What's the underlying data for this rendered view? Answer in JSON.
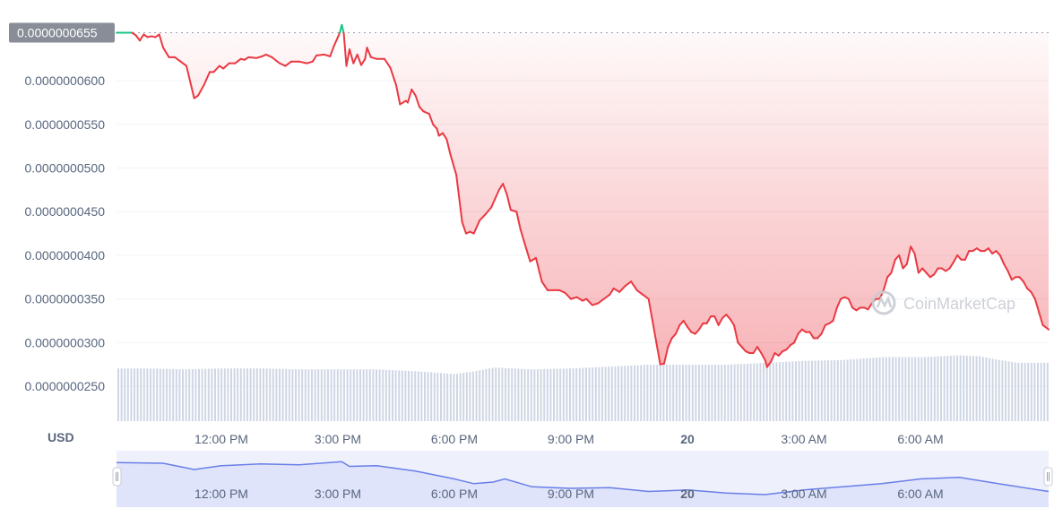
{
  "chart_data": {
    "type": "line",
    "currency_label": "USD",
    "current_price_label": "0.0000000655",
    "y_ticks": [
      "0.0000000600",
      "0.0000000550",
      "0.0000000500",
      "0.0000000450",
      "0.0000000400",
      "0.0000000350",
      "0.0000000300",
      "0.0000000250"
    ],
    "y_tick_values": [
      6e-08,
      5.5e-08,
      5e-08,
      4.5e-08,
      4e-08,
      3.5e-08,
      3e-08,
      2.5e-08
    ],
    "x_ticks": [
      {
        "label": "12:00 PM",
        "hour": 12,
        "bold": false
      },
      {
        "label": "3:00 PM",
        "hour": 15,
        "bold": false
      },
      {
        "label": "6:00 PM",
        "hour": 18,
        "bold": false
      },
      {
        "label": "9:00 PM",
        "hour": 21,
        "bold": false
      },
      {
        "label": "20",
        "hour": 24,
        "bold": true
      },
      {
        "label": "3:00 AM",
        "hour": 27,
        "bold": false
      },
      {
        "label": "6:00 AM",
        "hour": 30,
        "bold": false
      }
    ],
    "reference_price": 6.55e-08,
    "ylim": [
      2.1e-08,
      6.72e-08
    ],
    "xlim_hours": [
      9.3,
      33.3
    ],
    "colors": {
      "up": "#16c784",
      "down": "#ea3943",
      "volume": "#cfd6e4",
      "grid": "#eff2f5",
      "nav_fill": "#dfe4fb",
      "nav_line": "#6a7ee8",
      "label_bg": "#888d98"
    },
    "price_series": [
      [
        9.3,
        6.55
      ],
      [
        9.6,
        6.55
      ],
      [
        9.7,
        6.55
      ],
      [
        9.8,
        6.52
      ],
      [
        9.9,
        6.46
      ],
      [
        10.0,
        6.53
      ],
      [
        10.1,
        6.5
      ],
      [
        10.2,
        6.51
      ],
      [
        10.3,
        6.5
      ],
      [
        10.4,
        6.53
      ],
      [
        10.5,
        6.38
      ],
      [
        10.65,
        6.27
      ],
      [
        10.8,
        6.27
      ],
      [
        10.95,
        6.22
      ],
      [
        11.1,
        6.17
      ],
      [
        11.3,
        5.8
      ],
      [
        11.4,
        5.83
      ],
      [
        11.55,
        5.95
      ],
      [
        11.7,
        6.1
      ],
      [
        11.8,
        6.1
      ],
      [
        11.95,
        6.17
      ],
      [
        12.05,
        6.14
      ],
      [
        12.2,
        6.2
      ],
      [
        12.35,
        6.2
      ],
      [
        12.5,
        6.25
      ],
      [
        12.6,
        6.24
      ],
      [
        12.7,
        6.27
      ],
      [
        12.9,
        6.26
      ],
      [
        13.05,
        6.28
      ],
      [
        13.15,
        6.3
      ],
      [
        13.3,
        6.27
      ],
      [
        13.5,
        6.2
      ],
      [
        13.65,
        6.17
      ],
      [
        13.8,
        6.22
      ],
      [
        14.0,
        6.22
      ],
      [
        14.2,
        6.2
      ],
      [
        14.35,
        6.22
      ],
      [
        14.45,
        6.29
      ],
      [
        14.65,
        6.3
      ],
      [
        14.8,
        6.28
      ],
      [
        14.9,
        6.4
      ],
      [
        15.0,
        6.5
      ],
      [
        15.05,
        6.55
      ],
      [
        15.1,
        6.64
      ],
      [
        15.15,
        6.55
      ],
      [
        15.22,
        6.17
      ],
      [
        15.3,
        6.36
      ],
      [
        15.4,
        6.2
      ],
      [
        15.5,
        6.3
      ],
      [
        15.6,
        6.18
      ],
      [
        15.7,
        6.25
      ],
      [
        15.75,
        6.38
      ],
      [
        15.85,
        6.27
      ],
      [
        16.0,
        6.25
      ],
      [
        16.2,
        6.25
      ],
      [
        16.35,
        6.15
      ],
      [
        16.5,
        5.95
      ],
      [
        16.6,
        5.73
      ],
      [
        16.75,
        5.77
      ],
      [
        16.8,
        5.75
      ],
      [
        16.9,
        5.9
      ],
      [
        17.0,
        5.83
      ],
      [
        17.1,
        5.7
      ],
      [
        17.2,
        5.65
      ],
      [
        17.35,
        5.62
      ],
      [
        17.45,
        5.5
      ],
      [
        17.55,
        5.45
      ],
      [
        17.6,
        5.37
      ],
      [
        17.7,
        5.4
      ],
      [
        17.8,
        5.33
      ],
      [
        17.9,
        5.15
      ],
      [
        18.05,
        4.92
      ],
      [
        18.2,
        4.38
      ],
      [
        18.3,
        4.25
      ],
      [
        18.4,
        4.27
      ],
      [
        18.5,
        4.25
      ],
      [
        18.65,
        4.4
      ],
      [
        18.8,
        4.47
      ],
      [
        18.95,
        4.55
      ],
      [
        19.05,
        4.65
      ],
      [
        19.15,
        4.75
      ],
      [
        19.25,
        4.82
      ],
      [
        19.35,
        4.7
      ],
      [
        19.45,
        4.52
      ],
      [
        19.6,
        4.5
      ],
      [
        19.7,
        4.3
      ],
      [
        19.8,
        4.15
      ],
      [
        19.95,
        3.93
      ],
      [
        20.1,
        3.97
      ],
      [
        20.25,
        3.7
      ],
      [
        20.4,
        3.6
      ],
      [
        20.55,
        3.6
      ],
      [
        20.7,
        3.6
      ],
      [
        20.85,
        3.57
      ],
      [
        21.0,
        3.5
      ],
      [
        21.15,
        3.52
      ],
      [
        21.3,
        3.48
      ],
      [
        21.4,
        3.5
      ],
      [
        21.55,
        3.43
      ],
      [
        21.7,
        3.45
      ],
      [
        21.85,
        3.5
      ],
      [
        22.0,
        3.55
      ],
      [
        22.1,
        3.62
      ],
      [
        22.25,
        3.58
      ],
      [
        22.4,
        3.65
      ],
      [
        22.55,
        3.7
      ],
      [
        22.7,
        3.6
      ],
      [
        22.85,
        3.55
      ],
      [
        23.0,
        3.5
      ],
      [
        23.1,
        3.25
      ],
      [
        23.2,
        3.0
      ],
      [
        23.3,
        2.75
      ],
      [
        23.4,
        2.76
      ],
      [
        23.5,
        2.95
      ],
      [
        23.6,
        3.05
      ],
      [
        23.7,
        3.1
      ],
      [
        23.8,
        3.2
      ],
      [
        23.9,
        3.25
      ],
      [
        24.0,
        3.18
      ],
      [
        24.1,
        3.12
      ],
      [
        24.2,
        3.1
      ],
      [
        24.3,
        3.15
      ],
      [
        24.4,
        3.22
      ],
      [
        24.5,
        3.22
      ],
      [
        24.6,
        3.3
      ],
      [
        24.7,
        3.3
      ],
      [
        24.8,
        3.2
      ],
      [
        24.9,
        3.28
      ],
      [
        25.0,
        3.32
      ],
      [
        25.1,
        3.27
      ],
      [
        25.2,
        3.2
      ],
      [
        25.3,
        3.0
      ],
      [
        25.4,
        2.95
      ],
      [
        25.5,
        2.9
      ],
      [
        25.6,
        2.88
      ],
      [
        25.7,
        2.88
      ],
      [
        25.8,
        2.95
      ],
      [
        25.9,
        2.88
      ],
      [
        26.0,
        2.8
      ],
      [
        26.05,
        2.72
      ],
      [
        26.15,
        2.78
      ],
      [
        26.25,
        2.88
      ],
      [
        26.35,
        2.85
      ],
      [
        26.45,
        2.9
      ],
      [
        26.55,
        2.92
      ],
      [
        26.65,
        2.97
      ],
      [
        26.75,
        3.0
      ],
      [
        26.85,
        3.1
      ],
      [
        26.95,
        3.15
      ],
      [
        27.05,
        3.12
      ],
      [
        27.15,
        3.12
      ],
      [
        27.25,
        3.05
      ],
      [
        27.35,
        3.05
      ],
      [
        27.45,
        3.1
      ],
      [
        27.55,
        3.2
      ],
      [
        27.65,
        3.22
      ],
      [
        27.75,
        3.25
      ],
      [
        27.85,
        3.4
      ],
      [
        27.95,
        3.5
      ],
      [
        28.05,
        3.52
      ],
      [
        28.15,
        3.5
      ],
      [
        28.25,
        3.4
      ],
      [
        28.35,
        3.37
      ],
      [
        28.45,
        3.4
      ],
      [
        28.55,
        3.4
      ],
      [
        28.65,
        3.38
      ],
      [
        28.75,
        3.45
      ],
      [
        28.85,
        3.5
      ],
      [
        28.95,
        3.5
      ],
      [
        29.05,
        3.6
      ],
      [
        29.15,
        3.75
      ],
      [
        29.25,
        3.8
      ],
      [
        29.35,
        3.95
      ],
      [
        29.45,
        4.0
      ],
      [
        29.55,
        3.85
      ],
      [
        29.65,
        3.9
      ],
      [
        29.75,
        4.1
      ],
      [
        29.85,
        4.02
      ],
      [
        29.95,
        3.8
      ],
      [
        30.05,
        3.85
      ],
      [
        30.15,
        3.8
      ],
      [
        30.25,
        3.75
      ],
      [
        30.35,
        3.78
      ],
      [
        30.45,
        3.85
      ],
      [
        30.55,
        3.85
      ],
      [
        30.65,
        3.82
      ],
      [
        30.75,
        3.85
      ],
      [
        30.85,
        3.92
      ],
      [
        30.95,
        4.0
      ],
      [
        31.05,
        3.95
      ],
      [
        31.15,
        3.95
      ],
      [
        31.25,
        4.05
      ],
      [
        31.35,
        4.05
      ],
      [
        31.45,
        4.08
      ],
      [
        31.55,
        4.05
      ],
      [
        31.65,
        4.05
      ],
      [
        31.75,
        4.08
      ],
      [
        31.85,
        4.02
      ],
      [
        31.95,
        4.05
      ],
      [
        32.05,
        4.0
      ],
      [
        32.15,
        3.9
      ],
      [
        32.25,
        3.82
      ],
      [
        32.35,
        3.72
      ],
      [
        32.45,
        3.75
      ],
      [
        32.55,
        3.75
      ],
      [
        32.65,
        3.7
      ],
      [
        32.75,
        3.62
      ],
      [
        32.85,
        3.58
      ],
      [
        32.95,
        3.5
      ],
      [
        33.05,
        3.35
      ],
      [
        33.15,
        3.2
      ],
      [
        33.3,
        3.15
      ]
    ],
    "volume_series": [
      [
        9.3,
        0.56
      ],
      [
        10.0,
        0.56
      ],
      [
        11.0,
        0.55
      ],
      [
        12.0,
        0.56
      ],
      [
        13.0,
        0.56
      ],
      [
        14.0,
        0.55
      ],
      [
        15.0,
        0.55
      ],
      [
        16.0,
        0.55
      ],
      [
        17.0,
        0.53
      ],
      [
        18.0,
        0.5
      ],
      [
        18.5,
        0.53
      ],
      [
        19.0,
        0.57
      ],
      [
        20.0,
        0.55
      ],
      [
        21.0,
        0.56
      ],
      [
        22.0,
        0.58
      ],
      [
        23.0,
        0.6
      ],
      [
        24.0,
        0.6
      ],
      [
        25.0,
        0.6
      ],
      [
        26.0,
        0.62
      ],
      [
        27.0,
        0.64
      ],
      [
        28.0,
        0.65
      ],
      [
        29.0,
        0.68
      ],
      [
        30.0,
        0.68
      ],
      [
        31.0,
        0.7
      ],
      [
        31.5,
        0.69
      ],
      [
        32.0,
        0.65
      ],
      [
        32.5,
        0.62
      ],
      [
        33.3,
        0.62
      ]
    ],
    "navigator_series": [
      [
        9.3,
        0.82
      ],
      [
        10.5,
        0.8
      ],
      [
        11.3,
        0.6
      ],
      [
        12.0,
        0.72
      ],
      [
        13.0,
        0.78
      ],
      [
        14.0,
        0.75
      ],
      [
        15.1,
        0.85
      ],
      [
        15.3,
        0.7
      ],
      [
        16.0,
        0.72
      ],
      [
        17.0,
        0.55
      ],
      [
        18.0,
        0.3
      ],
      [
        18.5,
        0.15
      ],
      [
        19.0,
        0.2
      ],
      [
        19.3,
        0.3
      ],
      [
        20.0,
        0.05
      ],
      [
        21.0,
        0.0
      ],
      [
        22.0,
        0.02
      ],
      [
        23.0,
        -0.1
      ],
      [
        24.0,
        -0.05
      ],
      [
        25.0,
        -0.15
      ],
      [
        26.0,
        -0.2
      ],
      [
        27.0,
        -0.05
      ],
      [
        28.0,
        0.05
      ],
      [
        29.0,
        0.15
      ],
      [
        30.0,
        0.3
      ],
      [
        31.0,
        0.35
      ],
      [
        32.0,
        0.15
      ],
      [
        33.3,
        -0.1
      ]
    ]
  },
  "watermark": {
    "text": "CoinMarketCap"
  }
}
